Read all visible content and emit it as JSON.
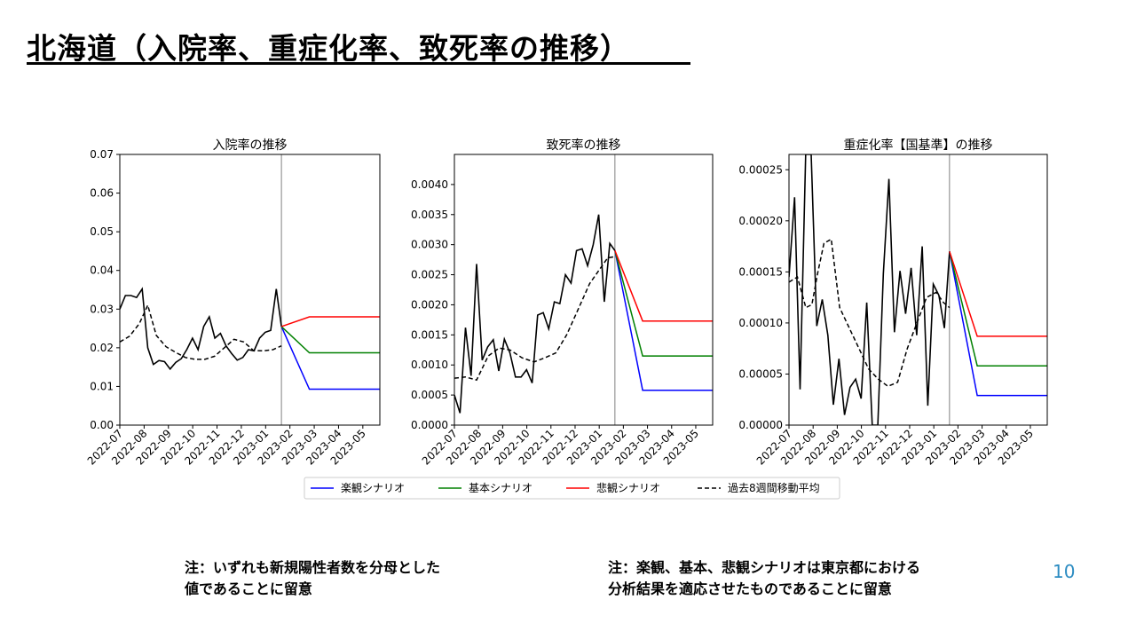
{
  "page": {
    "title": "北海道（入院率、重症化率、致死率の推移）",
    "note_left": [
      "注：いずれも新規陽性者数を分母とした",
      "値であることに留意"
    ],
    "note_right": [
      "注：楽観、基本、悲観シナリオは東京都における",
      "分析結果を適応させたものであることに留意"
    ],
    "page_number": "10"
  },
  "legend": [
    {
      "label": "楽観シナリオ",
      "color": "#0000ff",
      "dash": false
    },
    {
      "label": "基本シナリオ",
      "color": "#008000",
      "dash": false
    },
    {
      "label": "悲観シナリオ",
      "color": "#ff0000",
      "dash": false
    },
    {
      "label": "過去8週間移動平均",
      "color": "#000000",
      "dash": true
    }
  ],
  "chart_data": [
    {
      "type": "line",
      "title": "入院率の推移",
      "x_tick_labels": [
        "2022-07",
        "2022-08",
        "2022-09",
        "2022-10",
        "2022-11",
        "2022-12",
        "2023-01",
        "2023-02",
        "2023-03",
        "2023-04",
        "2023-05"
      ],
      "x_range": [
        0,
        10.7
      ],
      "ylim": [
        0,
        0.07
      ],
      "y_tick_values": [
        0,
        0.01,
        0.02,
        0.03,
        0.04,
        0.05,
        0.06,
        0.07
      ],
      "y_tick_labels": [
        "0.00",
        "0.01",
        "0.02",
        "0.03",
        "0.04",
        "0.05",
        "0.06",
        "0.07"
      ],
      "vline_x": 6.65,
      "actual": {
        "x": [
          0,
          0.23,
          0.46,
          0.69,
          0.92,
          1.15,
          1.38,
          1.61,
          1.84,
          2.07,
          2.3,
          2.53,
          2.76,
          2.99,
          3.22,
          3.45,
          3.68,
          3.91,
          4.14,
          4.37,
          4.6,
          4.83,
          5.06,
          5.29,
          5.52,
          5.75,
          5.98,
          6.21,
          6.44,
          6.65
        ],
        "y": [
          0.03,
          0.0335,
          0.0335,
          0.033,
          0.0352,
          0.02,
          0.0157,
          0.0167,
          0.0164,
          0.0145,
          0.0162,
          0.0172,
          0.0196,
          0.0225,
          0.0195,
          0.0255,
          0.028,
          0.0225,
          0.0237,
          0.0205,
          0.0185,
          0.0168,
          0.0175,
          0.0195,
          0.0192,
          0.0225,
          0.024,
          0.0245,
          0.0352,
          0.0255
        ]
      },
      "moving_average": {
        "x": [
          0,
          0.4,
          0.8,
          1.15,
          1.5,
          1.9,
          2.3,
          2.7,
          3.1,
          3.5,
          3.9,
          4.3,
          4.7,
          5.1,
          5.5,
          5.9,
          6.3,
          6.65
        ],
        "y": [
          0.0215,
          0.023,
          0.0262,
          0.031,
          0.0232,
          0.0203,
          0.0188,
          0.0175,
          0.017,
          0.017,
          0.0178,
          0.02,
          0.0222,
          0.0215,
          0.0193,
          0.0192,
          0.0195,
          0.0205
        ]
      },
      "scenarios": [
        {
          "name": "楽観シナリオ",
          "color": "#0000ff",
          "x": [
            6.65,
            7.8,
            10.7
          ],
          "y": [
            0.0255,
            0.0093,
            0.0093
          ]
        },
        {
          "name": "基本シナリオ",
          "color": "#008000",
          "x": [
            6.65,
            7.8,
            10.7
          ],
          "y": [
            0.0255,
            0.0187,
            0.0187
          ]
        },
        {
          "name": "悲観シナリオ",
          "color": "#ff0000",
          "x": [
            6.65,
            7.8,
            10.7
          ],
          "y": [
            0.0255,
            0.028,
            0.028
          ]
        }
      ]
    },
    {
      "type": "line",
      "title": "致死率の推移",
      "x_tick_labels": [
        "2022-07",
        "2022-08",
        "2022-09",
        "2022-10",
        "2022-11",
        "2022-12",
        "2023-01",
        "2023-02",
        "2023-03",
        "2023-04",
        "2023-05"
      ],
      "x_range": [
        0,
        10.7
      ],
      "ylim": [
        0,
        0.0045
      ],
      "y_tick_values": [
        0,
        0.0005,
        0.001,
        0.0015,
        0.002,
        0.0025,
        0.003,
        0.0035,
        0.004
      ],
      "y_tick_labels": [
        "0.0000",
        "0.0005",
        "0.0010",
        "0.0015",
        "0.0020",
        "0.0025",
        "0.0030",
        "0.0035",
        "0.0040"
      ],
      "vline_x": 6.65,
      "actual": {
        "x": [
          0,
          0.23,
          0.46,
          0.69,
          0.92,
          1.15,
          1.38,
          1.61,
          1.84,
          2.07,
          2.3,
          2.53,
          2.76,
          2.99,
          3.22,
          3.45,
          3.68,
          3.91,
          4.14,
          4.37,
          4.6,
          4.83,
          5.06,
          5.29,
          5.52,
          5.75,
          5.98,
          6.21,
          6.44,
          6.65
        ],
        "y": [
          0.0005,
          0.0002,
          0.00162,
          0.00082,
          0.00268,
          0.00108,
          0.0013,
          0.00142,
          0.0009,
          0.00143,
          0.0012,
          0.0008,
          0.0008,
          0.00092,
          0.0007,
          0.00183,
          0.00187,
          0.0016,
          0.00205,
          0.00202,
          0.0025,
          0.00236,
          0.0029,
          0.00293,
          0.00265,
          0.003,
          0.0035,
          0.00205,
          0.00302,
          0.0029
        ]
      },
      "moving_average": {
        "x": [
          0,
          0.46,
          0.92,
          1.4,
          1.85,
          2.3,
          2.8,
          3.3,
          3.75,
          4.2,
          4.65,
          5.1,
          5.6,
          6.0,
          6.35,
          6.65
        ],
        "y": [
          0.00078,
          0.0008,
          0.00075,
          0.00115,
          0.00128,
          0.00125,
          0.00112,
          0.00105,
          0.00112,
          0.0012,
          0.0015,
          0.0019,
          0.00235,
          0.00258,
          0.00278,
          0.0028
        ]
      },
      "scenarios": [
        {
          "name": "楽観シナリオ",
          "color": "#0000ff",
          "x": [
            6.65,
            7.8,
            10.7
          ],
          "y": [
            0.0029,
            0.00058,
            0.00058
          ]
        },
        {
          "name": "基本シナリオ",
          "color": "#008000",
          "x": [
            6.65,
            7.8,
            10.7
          ],
          "y": [
            0.0029,
            0.00115,
            0.00115
          ]
        },
        {
          "name": "悲観シナリオ",
          "color": "#ff0000",
          "x": [
            6.65,
            7.8,
            10.7
          ],
          "y": [
            0.0029,
            0.00173,
            0.00173
          ]
        }
      ]
    },
    {
      "type": "line",
      "title": "重症化率【国基準】の推移",
      "x_tick_labels": [
        "2022-07",
        "2022-08",
        "2022-09",
        "2022-10",
        "2022-11",
        "2022-12",
        "2023-01",
        "2023-02",
        "2023-03",
        "2023-04",
        "2023-05"
      ],
      "x_range": [
        0,
        10.7
      ],
      "ylim": [
        0,
        0.000265
      ],
      "y_tick_values": [
        0,
        5e-05,
        0.0001,
        0.00015,
        0.0002,
        0.00025
      ],
      "y_tick_labels": [
        "0.00000",
        "0.00005",
        "0.00010",
        "0.00015",
        "0.00020",
        "0.00025"
      ],
      "vline_x": 6.65,
      "actual": {
        "x": [
          0,
          0.23,
          0.46,
          0.69,
          0.92,
          1.15,
          1.38,
          1.61,
          1.84,
          2.07,
          2.3,
          2.53,
          2.76,
          2.99,
          3.22,
          3.45,
          3.68,
          3.91,
          4.14,
          4.37,
          4.6,
          4.83,
          5.06,
          5.29,
          5.52,
          5.75,
          5.98,
          6.21,
          6.44,
          6.65
        ],
        "y": [
          0.000145,
          0.000223,
          3.5e-05,
          0.000265,
          0.000265,
          9.7e-05,
          0.000123,
          8.8e-05,
          2e-05,
          6.5e-05,
          1e-05,
          3.7e-05,
          4.5e-05,
          2.6e-05,
          0.00012,
          0,
          0,
          0.000148,
          0.000241,
          9.1e-05,
          0.000151,
          0.000109,
          0.000154,
          8.8e-05,
          0.000175,
          1.9e-05,
          0.000138,
          0.000127,
          9.5e-05,
          0.00017
        ]
      },
      "moving_average": {
        "x": [
          0,
          0.35,
          0.7,
          0.95,
          1.2,
          1.45,
          1.75,
          2.1,
          2.5,
          2.9,
          3.3,
          3.7,
          4.1,
          4.5,
          4.9,
          5.3,
          5.7,
          6.1,
          6.4,
          6.65
        ],
        "y": [
          0.00014,
          0.000145,
          0.000115,
          0.000118,
          0.00015,
          0.000178,
          0.000182,
          0.000115,
          9.5e-05,
          7.5e-05,
          5.5e-05,
          4.5e-05,
          3.8e-05,
          4.2e-05,
          7.5e-05,
          0.0001,
          0.000125,
          0.00013,
          0.00012,
          0.000115
        ]
      },
      "scenarios": [
        {
          "name": "楽観シナリオ",
          "color": "#0000ff",
          "x": [
            6.65,
            7.8,
            10.7
          ],
          "y": [
            0.00017,
            2.9e-05,
            2.9e-05
          ]
        },
        {
          "name": "基本シナリオ",
          "color": "#008000",
          "x": [
            6.65,
            7.8,
            10.7
          ],
          "y": [
            0.00017,
            5.8e-05,
            5.8e-05
          ]
        },
        {
          "name": "悲観シナリオ",
          "color": "#ff0000",
          "x": [
            6.65,
            7.8,
            10.7
          ],
          "y": [
            0.00017,
            8.7e-05,
            8.7e-05
          ]
        }
      ]
    }
  ]
}
